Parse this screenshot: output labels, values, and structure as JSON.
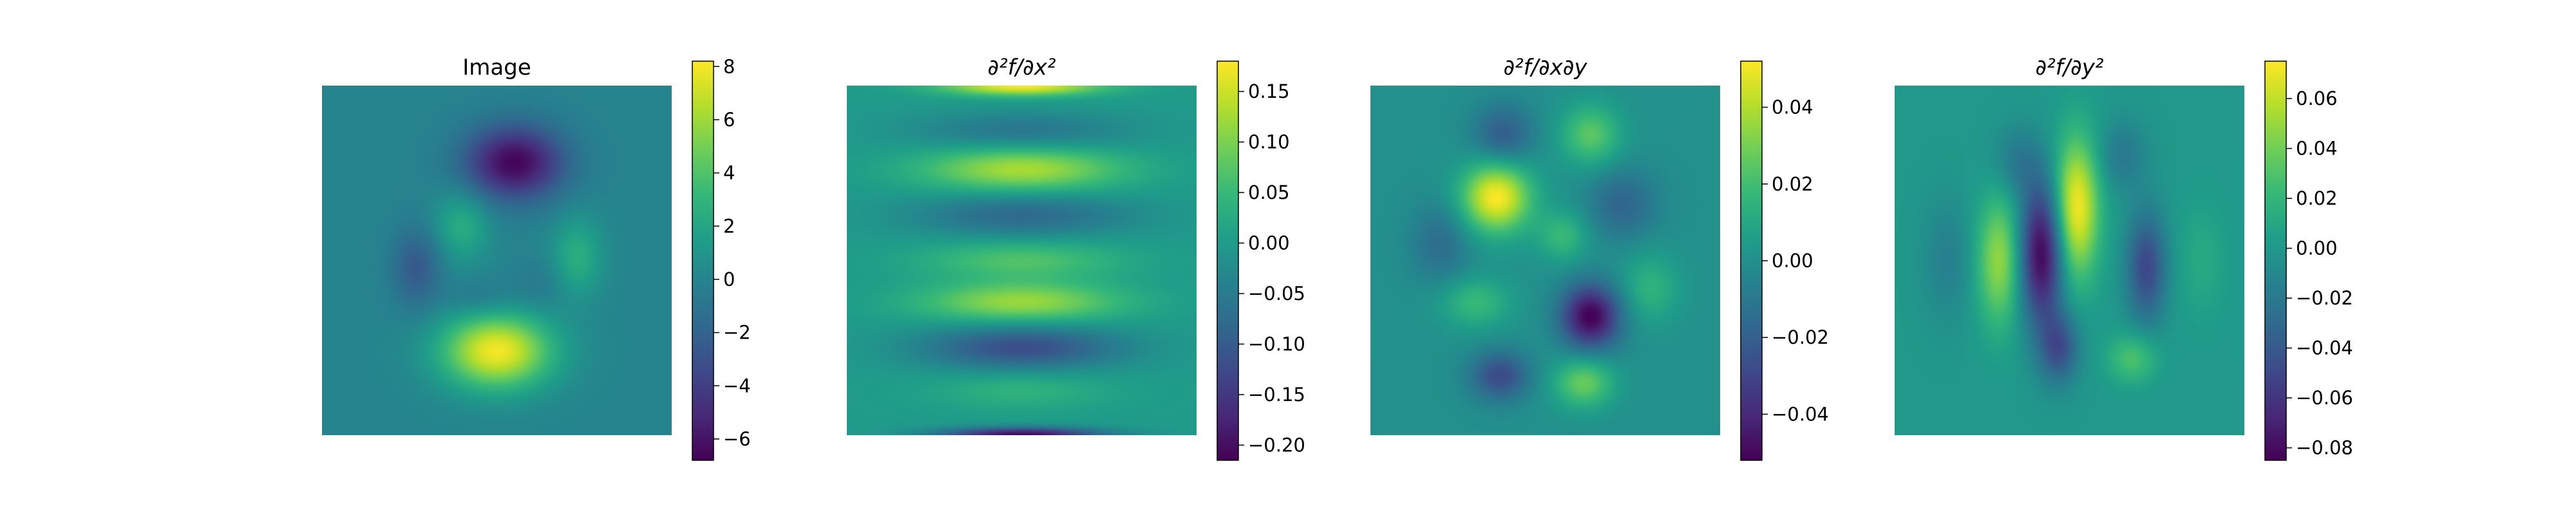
{
  "chart_data": [
    {
      "type": "heatmap",
      "title": "Image",
      "colormap": "viridis",
      "colorbar": {
        "range": [
          -6.8,
          8.2
        ],
        "ticks": [
          8,
          6,
          4,
          2,
          0,
          -2,
          -4,
          -6
        ],
        "tick_labels": [
          "8",
          "6",
          "4",
          "2",
          "0",
          "−2",
          "−4",
          "−6"
        ]
      },
      "background_value": 0,
      "blobs": [
        {
          "x": 0.55,
          "y": 0.22,
          "sx": 0.1,
          "sy": 0.075,
          "value": -6.6
        },
        {
          "x": 0.5,
          "y": 0.76,
          "sx": 0.11,
          "sy": 0.075,
          "value": 8.0
        },
        {
          "x": 0.4,
          "y": 0.4,
          "sx": 0.055,
          "sy": 0.07,
          "value": 2.5
        },
        {
          "x": 0.27,
          "y": 0.52,
          "sx": 0.05,
          "sy": 0.08,
          "value": -2.6
        },
        {
          "x": 0.73,
          "y": 0.49,
          "sx": 0.05,
          "sy": 0.08,
          "value": 2.6
        },
        {
          "x": 0.62,
          "y": 0.57,
          "sx": 0.06,
          "sy": 0.05,
          "value": -0.8
        },
        {
          "x": 0.45,
          "y": 0.61,
          "sx": 0.07,
          "sy": 0.04,
          "value": -1.0
        }
      ]
    },
    {
      "type": "heatmap",
      "title": "∂²f/∂x²",
      "colormap": "viridis",
      "colorbar": {
        "range": [
          -0.215,
          0.18
        ],
        "ticks": [
          0.15,
          0.1,
          0.05,
          0.0,
          -0.05,
          -0.1,
          -0.15,
          -0.2
        ],
        "tick_labels": [
          "0.15",
          "0.10",
          "0.05",
          "0.00",
          "−0.05",
          "−0.10",
          "−0.15",
          "−0.20"
        ]
      },
      "background_value": 0.0,
      "blobs": [
        {
          "x": 0.5,
          "y": 0.0,
          "sx": 0.16,
          "sy": 0.02,
          "value": 0.18
        },
        {
          "x": 0.5,
          "y": 0.13,
          "sx": 0.22,
          "sy": 0.04,
          "value": -0.06
        },
        {
          "x": 0.5,
          "y": 0.24,
          "sx": 0.2,
          "sy": 0.045,
          "value": 0.13
        },
        {
          "x": 0.5,
          "y": 0.37,
          "sx": 0.22,
          "sy": 0.045,
          "value": -0.08
        },
        {
          "x": 0.5,
          "y": 0.5,
          "sx": 0.2,
          "sy": 0.04,
          "value": 0.07
        },
        {
          "x": 0.5,
          "y": 0.62,
          "sx": 0.2,
          "sy": 0.04,
          "value": 0.12
        },
        {
          "x": 0.5,
          "y": 0.75,
          "sx": 0.2,
          "sy": 0.045,
          "value": -0.12
        },
        {
          "x": 0.5,
          "y": 0.87,
          "sx": 0.18,
          "sy": 0.04,
          "value": 0.04
        },
        {
          "x": 0.5,
          "y": 1.0,
          "sx": 0.16,
          "sy": 0.015,
          "value": -0.21
        }
      ]
    },
    {
      "type": "heatmap",
      "title": "∂²f/∂x∂y",
      "colormap": "viridis",
      "colorbar": {
        "range": [
          -0.052,
          0.052
        ],
        "ticks": [
          0.04,
          0.02,
          0.0,
          -0.02,
          -0.04
        ],
        "tick_labels": [
          "0.04",
          "0.02",
          "0.00",
          "−0.02",
          "−0.04"
        ]
      },
      "background_value": 0.0,
      "blobs": [
        {
          "x": 0.36,
          "y": 0.32,
          "sx": 0.07,
          "sy": 0.07,
          "value": 0.052
        },
        {
          "x": 0.63,
          "y": 0.66,
          "sx": 0.06,
          "sy": 0.065,
          "value": -0.052
        },
        {
          "x": 0.38,
          "y": 0.14,
          "sx": 0.06,
          "sy": 0.06,
          "value": -0.022
        },
        {
          "x": 0.63,
          "y": 0.14,
          "sx": 0.06,
          "sy": 0.06,
          "value": 0.025
        },
        {
          "x": 0.72,
          "y": 0.34,
          "sx": 0.07,
          "sy": 0.07,
          "value": -0.018
        },
        {
          "x": 0.2,
          "y": 0.45,
          "sx": 0.06,
          "sy": 0.08,
          "value": -0.015
        },
        {
          "x": 0.55,
          "y": 0.43,
          "sx": 0.05,
          "sy": 0.05,
          "value": 0.018
        },
        {
          "x": 0.3,
          "y": 0.62,
          "sx": 0.07,
          "sy": 0.05,
          "value": 0.018
        },
        {
          "x": 0.8,
          "y": 0.58,
          "sx": 0.06,
          "sy": 0.07,
          "value": 0.015
        },
        {
          "x": 0.37,
          "y": 0.83,
          "sx": 0.06,
          "sy": 0.05,
          "value": -0.028
        },
        {
          "x": 0.61,
          "y": 0.85,
          "sx": 0.06,
          "sy": 0.05,
          "value": 0.028
        }
      ]
    },
    {
      "type": "heatmap",
      "title": "∂²f/∂y²",
      "colormap": "viridis",
      "colorbar": {
        "range": [
          -0.085,
          0.075
        ],
        "ticks": [
          0.06,
          0.04,
          0.02,
          0.0,
          -0.02,
          -0.04,
          -0.06,
          -0.08
        ],
        "tick_labels": [
          "0.06",
          "0.04",
          "0.02",
          "0.00",
          "−0.02",
          "−0.04",
          "−0.06",
          "−0.08"
        ]
      },
      "background_value": 0.0,
      "blobs": [
        {
          "x": 0.52,
          "y": 0.35,
          "sx": 0.045,
          "sy": 0.14,
          "value": 0.075
        },
        {
          "x": 0.42,
          "y": 0.48,
          "sx": 0.045,
          "sy": 0.14,
          "value": -0.085
        },
        {
          "x": 0.3,
          "y": 0.5,
          "sx": 0.045,
          "sy": 0.13,
          "value": 0.05
        },
        {
          "x": 0.72,
          "y": 0.52,
          "sx": 0.04,
          "sy": 0.11,
          "value": -0.05
        },
        {
          "x": 0.35,
          "y": 0.22,
          "sx": 0.05,
          "sy": 0.07,
          "value": -0.02
        },
        {
          "x": 0.65,
          "y": 0.2,
          "sx": 0.05,
          "sy": 0.07,
          "value": -0.02
        },
        {
          "x": 0.47,
          "y": 0.75,
          "sx": 0.04,
          "sy": 0.07,
          "value": -0.045
        },
        {
          "x": 0.68,
          "y": 0.78,
          "sx": 0.05,
          "sy": 0.05,
          "value": 0.03
        },
        {
          "x": 0.15,
          "y": 0.5,
          "sx": 0.05,
          "sy": 0.12,
          "value": -0.015
        },
        {
          "x": 0.88,
          "y": 0.5,
          "sx": 0.05,
          "sy": 0.12,
          "value": 0.012
        }
      ]
    }
  ]
}
